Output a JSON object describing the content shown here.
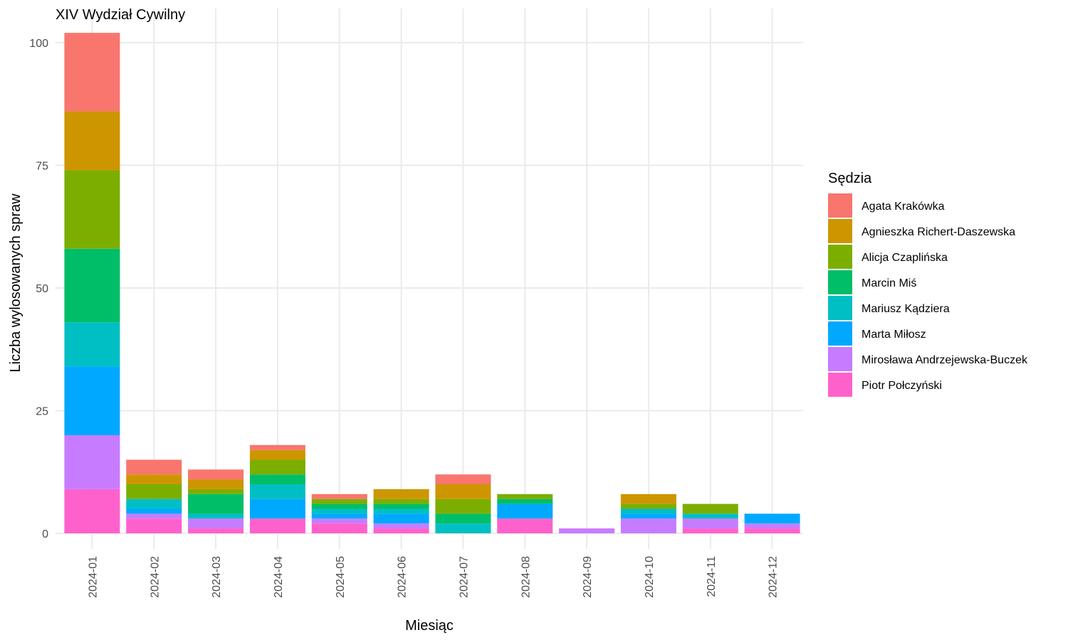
{
  "chart_data": {
    "type": "bar",
    "stacked": true,
    "title": "XIV Wydział Cywilny",
    "xlabel": "Miesiąc",
    "ylabel": "Liczba wylosowanych spraw",
    "ylim": [
      0,
      102
    ],
    "yticks": [
      0,
      25,
      50,
      75,
      100
    ],
    "grid": true,
    "legend_title": "Sędzia",
    "legend_position": "right",
    "categories": [
      "2024-01",
      "2024-02",
      "2024-03",
      "2024-04",
      "2024-05",
      "2024-06",
      "2024-07",
      "2024-08",
      "2024-09",
      "2024-10",
      "2024-11",
      "2024-12"
    ],
    "series": [
      {
        "name": "Agata Krakówka",
        "color": "#F8766D",
        "values": [
          16,
          3,
          2,
          1,
          1,
          0,
          2,
          0,
          0,
          0,
          0,
          0
        ]
      },
      {
        "name": "Agnieszka Richert-Daszewska",
        "color": "#CD9600",
        "values": [
          12,
          2,
          2,
          2,
          0,
          2,
          3,
          0,
          0,
          2,
          0,
          0
        ]
      },
      {
        "name": "Alicja Czaplińska",
        "color": "#7CAE00",
        "values": [
          16,
          3,
          1,
          3,
          1,
          1,
          3,
          1,
          0,
          1,
          2,
          0
        ]
      },
      {
        "name": "Marcin Miś",
        "color": "#00BE67",
        "values": [
          15,
          0,
          4,
          2,
          1,
          1,
          2,
          1,
          0,
          0,
          0,
          0
        ]
      },
      {
        "name": "Mariusz Kądziera",
        "color": "#00BFC4",
        "values": [
          9,
          2,
          1,
          3,
          1,
          1,
          2,
          0,
          0,
          1,
          1,
          0
        ]
      },
      {
        "name": "Marta Miłosz",
        "color": "#00A9FF",
        "values": [
          14,
          1,
          0,
          4,
          1,
          2,
          0,
          3,
          0,
          1,
          0,
          2
        ]
      },
      {
        "name": "Mirosława Andrzejewska-Buczek",
        "color": "#C77CFF",
        "values": [
          11,
          1,
          2,
          0,
          1,
          1,
          0,
          0,
          1,
          3,
          2,
          1
        ]
      },
      {
        "name": "Piotr Połczyński",
        "color": "#FF61CC",
        "values": [
          9,
          3,
          1,
          3,
          2,
          1,
          0,
          3,
          0,
          0,
          1,
          1
        ]
      }
    ]
  }
}
